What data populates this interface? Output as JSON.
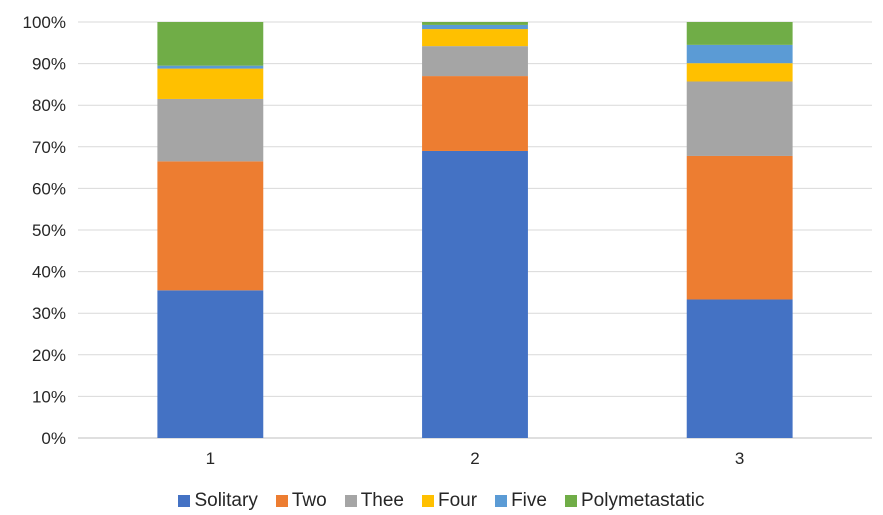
{
  "chart_data": {
    "type": "bar",
    "stacked": true,
    "percent": true,
    "title": "",
    "xlabel": "",
    "ylabel": "",
    "categories": [
      "1",
      "2",
      "3"
    ],
    "ylim": [
      0,
      100
    ],
    "yticks": [
      "0%",
      "10%",
      "20%",
      "30%",
      "40%",
      "50%",
      "60%",
      "70%",
      "80%",
      "90%",
      "100%"
    ],
    "grid": true,
    "legend_position": "bottom",
    "series": [
      {
        "name": "Solitary",
        "color": "#4472C4",
        "values": [
          35.5,
          69,
          33.3
        ]
      },
      {
        "name": "Two",
        "color": "#ED7D31",
        "values": [
          31,
          18,
          34.5
        ]
      },
      {
        "name": "Thee",
        "color": "#A5A5A5",
        "values": [
          15,
          7.2,
          17.9
        ]
      },
      {
        "name": "Four",
        "color": "#FFC000",
        "values": [
          7.3,
          4.1,
          4.4
        ]
      },
      {
        "name": "Five",
        "color": "#5B9BD5",
        "values": [
          0.7,
          1.0,
          4.4
        ]
      },
      {
        "name": "Polymetastatic",
        "color": "#70AD47",
        "values": [
          10.5,
          0.7,
          5.5
        ]
      }
    ]
  }
}
